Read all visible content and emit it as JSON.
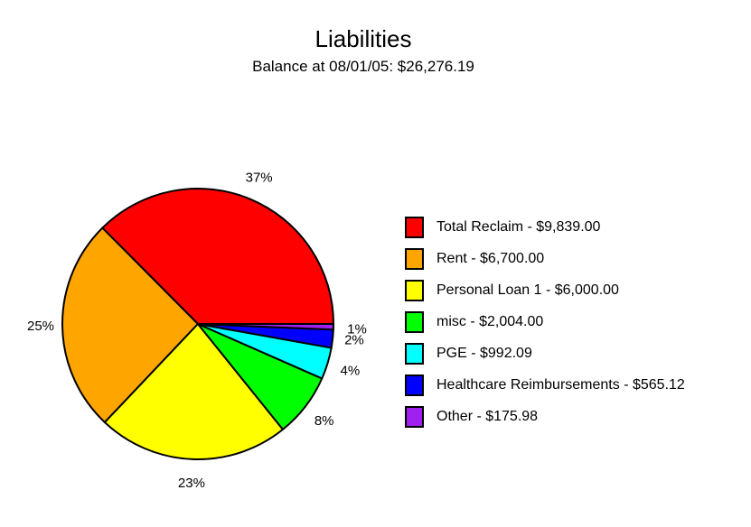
{
  "chart_data": {
    "type": "pie",
    "title": "Liabilities",
    "subtitle": "Balance at 08/01/05: $26,276.19",
    "slices": [
      {
        "name": "Total Reclaim",
        "value": 9839.0,
        "percent_label": "37%",
        "legend_label": "Total Reclaim - $9,839.00",
        "color": "#ff0000"
      },
      {
        "name": "Rent",
        "value": 6700.0,
        "percent_label": "25%",
        "legend_label": "Rent - $6,700.00",
        "color": "#ffa500"
      },
      {
        "name": "Personal Loan 1",
        "value": 6000.0,
        "percent_label": "23%",
        "legend_label": "Personal Loan 1 - $6,000.00",
        "color": "#ffff00"
      },
      {
        "name": "misc",
        "value": 2004.0,
        "percent_label": "8%",
        "legend_label": "misc - $2,004.00",
        "color": "#00ff00"
      },
      {
        "name": "PGE",
        "value": 992.09,
        "percent_label": "4%",
        "legend_label": "PGE - $992.09",
        "color": "#00ffff"
      },
      {
        "name": "Healthcare Reimbursements",
        "value": 565.12,
        "percent_label": "2%",
        "legend_label": "Healthcare Reimbursements - $565.12",
        "color": "#0000ff"
      },
      {
        "name": "Other",
        "value": 175.98,
        "percent_label": "1%",
        "legend_label": "Other - $175.98",
        "color": "#a020f0"
      }
    ],
    "legend_position": "right"
  }
}
